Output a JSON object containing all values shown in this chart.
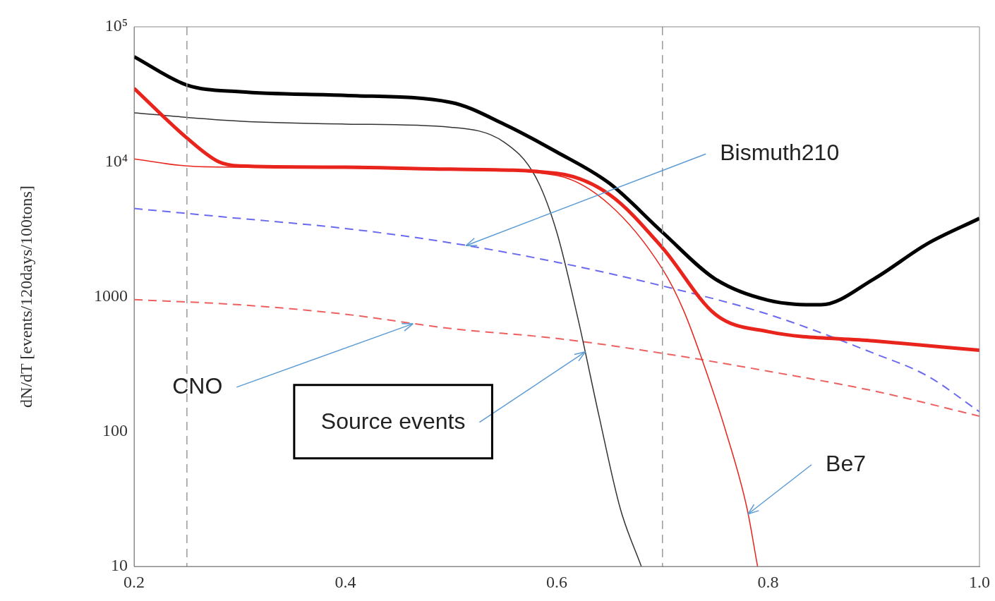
{
  "chart_data": {
    "type": "line",
    "ylabel": "dN/dT [events/120days/100tons]",
    "log": "y",
    "grid": false,
    "legend": false,
    "marker": "none",
    "xlim": [
      0.2,
      1.0
    ],
    "xticks": [
      0.2,
      0.4,
      0.6,
      0.8,
      {
        "value": 1.0,
        "label": "1.0"
      }
    ],
    "ylim": [
      10,
      100000
    ],
    "yticks": [
      {
        "value": 10,
        "label": "10"
      },
      {
        "value": 100,
        "label": "100"
      },
      {
        "value": 1000,
        "label": "1000"
      },
      {
        "value": 10000,
        "label": "10⁴"
      },
      {
        "value": 100000,
        "label": "10⁵"
      }
    ],
    "series": [
      {
        "color": "#000000",
        "x": [
          0.2,
          0.25,
          0.3,
          0.4,
          0.5,
          0.55,
          0.6,
          0.65,
          0.7,
          0.75,
          0.8,
          0.85,
          0.9,
          0.95,
          1.0
        ],
        "values": [
          60000,
          37000,
          33000,
          31000,
          27500,
          19000,
          11800,
          6900,
          3000,
          1350,
          940,
          870,
          1350,
          2450,
          3800
        ]
      },
      {
        "color": "#e8241c",
        "x": [
          0.2,
          0.25,
          0.28,
          0.3,
          0.4,
          0.5,
          0.6,
          0.65,
          0.7,
          0.75,
          0.8,
          0.9,
          1.0
        ],
        "values": [
          35000,
          15000,
          10000,
          9300,
          9100,
          8800,
          8200,
          5700,
          2300,
          740,
          550,
          470,
          400
        ]
      },
      {
        "color": "#333333",
        "x": [
          0.2,
          0.3,
          0.4,
          0.5,
          0.55,
          0.58,
          0.6,
          0.62,
          0.64,
          0.66,
          0.68
        ],
        "values": [
          23000,
          20000,
          19000,
          18000,
          14000,
          7700,
          3000,
          690,
          130,
          27,
          10
        ]
      },
      {
        "name": "Be7",
        "color": "#e8241c",
        "x": [
          0.2,
          0.25,
          0.3,
          0.5,
          0.6,
          0.65,
          0.7,
          0.72,
          0.74,
          0.76,
          0.78,
          0.79
        ],
        "values": [
          10500,
          9300,
          9100,
          8800,
          7900,
          4800,
          1600,
          790,
          300,
          100,
          27,
          10
        ]
      },
      {
        "name": "Bismuth210",
        "color": "#6a6af0",
        "line_style": "dashed",
        "x": [
          0.2,
          0.3,
          0.4,
          0.5,
          0.6,
          0.7,
          0.8,
          0.9,
          0.95,
          1.0
        ],
        "values": [
          4500,
          3800,
          3200,
          2500,
          1800,
          1200,
          740,
          380,
          260,
          140
        ]
      },
      {
        "color": "#ee6060",
        "line_style": "dashed",
        "x": [
          0.2,
          0.3,
          0.4,
          0.5,
          0.6,
          0.7,
          0.8,
          0.9,
          1.0
        ],
        "values": [
          950,
          870,
          740,
          580,
          490,
          380,
          280,
          200,
          130
        ]
      }
    ],
    "ref_lines": [
      {
        "axis": "x",
        "value": 0.25,
        "color": "#999999",
        "line_style": "dashed"
      },
      {
        "axis": "x",
        "value": 0.7,
        "color": "#999999",
        "line_style": "dashed"
      }
    ],
    "annotations": [
      {
        "text": "CNO",
        "x": 0.464,
        "y": 630
      },
      {
        "text": "Source events",
        "x": 0.627,
        "y": 390
      }
    ]
  }
}
